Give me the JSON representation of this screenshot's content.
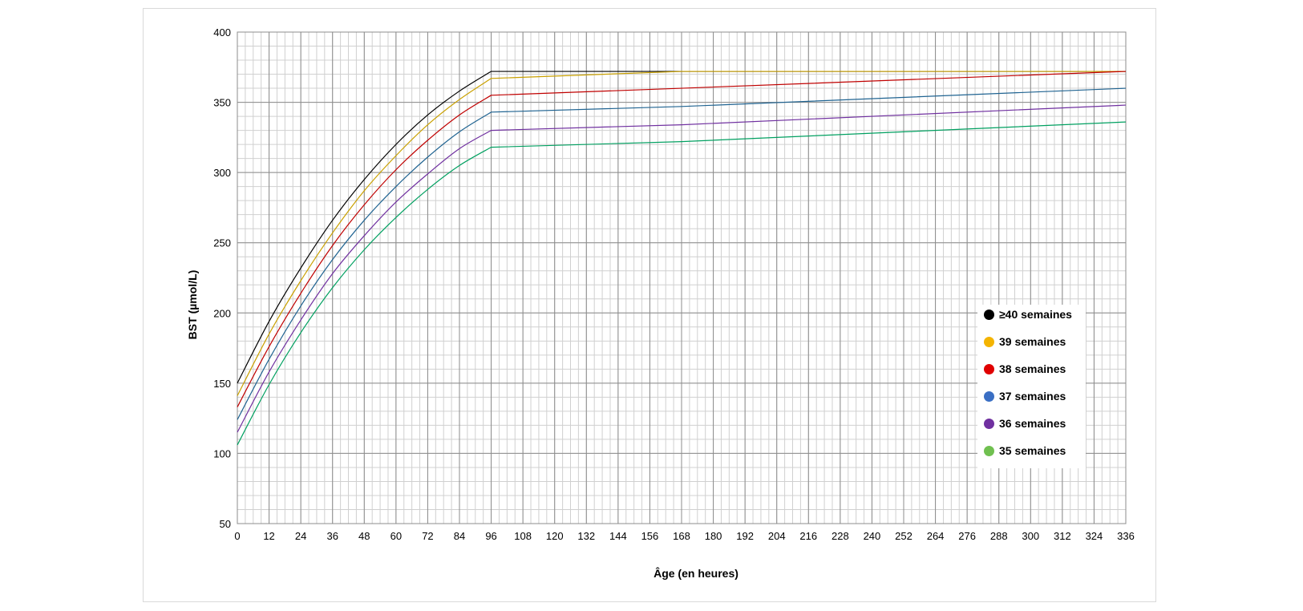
{
  "chart_data": {
    "type": "line",
    "title": "",
    "xlabel": "Âge (en heures)",
    "ylabel": "BST (µmol/L)",
    "xlim": [
      0,
      336
    ],
    "ylim": [
      50,
      400
    ],
    "x_ticks": [
      0,
      12,
      24,
      36,
      48,
      60,
      72,
      84,
      96,
      108,
      120,
      132,
      144,
      156,
      168,
      180,
      192,
      204,
      216,
      228,
      240,
      252,
      264,
      276,
      288,
      300,
      312,
      324,
      336
    ],
    "y_ticks": [
      50,
      100,
      150,
      200,
      250,
      300,
      350,
      400
    ],
    "minor_x_step": 3,
    "minor_y_step": 10,
    "grid": true,
    "legend_position": "right",
    "x": [
      0,
      12,
      24,
      36,
      48,
      60,
      72,
      84,
      96,
      168,
      336
    ],
    "series": [
      {
        "name": "≥40 semaines",
        "legend_color": "#000000",
        "line_color": "#000000",
        "values": [
          150,
          194,
          232,
          266,
          295,
          320,
          341,
          358,
          372,
          372,
          372
        ]
      },
      {
        "name": "39 semaines",
        "legend_color": "#f4b400",
        "line_color": "#c9a000",
        "values": [
          141,
          185,
          223,
          257,
          287,
          312,
          334,
          352,
          367,
          372,
          372
        ]
      },
      {
        "name": "38 semaines",
        "legend_color": "#e00000",
        "line_color": "#c00000",
        "values": [
          133,
          176,
          214,
          248,
          277,
          302,
          323,
          341,
          355,
          360,
          372
        ]
      },
      {
        "name": "37 semaines",
        "legend_color": "#3a6fc4",
        "line_color": "#1f6391",
        "values": [
          124,
          167,
          205,
          238,
          266,
          290,
          311,
          329,
          343,
          347,
          360
        ]
      },
      {
        "name": "36 semaines",
        "legend_color": "#7030a0",
        "line_color": "#7030a0",
        "values": [
          115,
          158,
          195,
          228,
          255,
          279,
          299,
          317,
          330,
          334,
          348
        ]
      },
      {
        "name": "35 semaines",
        "legend_color": "#70c050",
        "line_color": "#00a060",
        "values": [
          106,
          149,
          186,
          218,
          245,
          268,
          288,
          305,
          318,
          322,
          336
        ]
      }
    ]
  }
}
